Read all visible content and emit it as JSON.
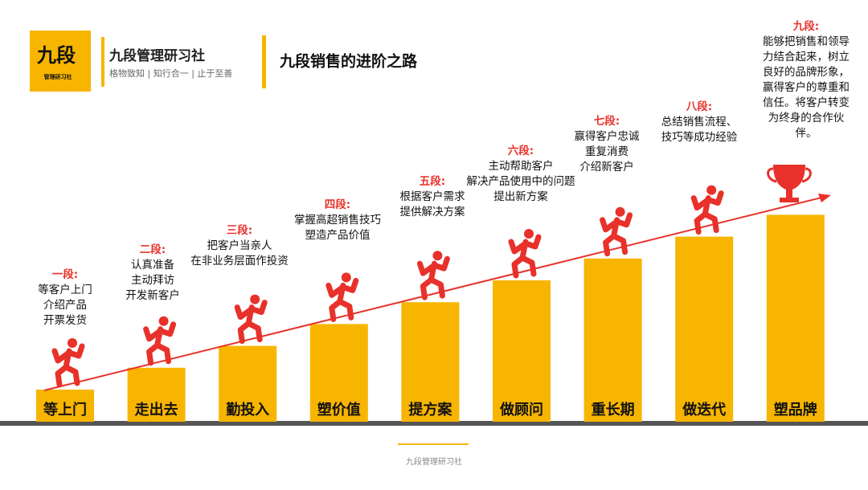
{
  "header": {
    "logo": "九段",
    "logo_sub": "管理研习社",
    "brand": "九段管理研习社",
    "motto": "格物致知 | 知行合一 | 止于至善",
    "title": "九段销售的进阶之路"
  },
  "steps": [
    {
      "label": "等上门",
      "title": "一段:",
      "lines": [
        "等客户上门",
        "介绍产品",
        "开票发货"
      ]
    },
    {
      "label": "走出去",
      "title": "二段:",
      "lines": [
        "认真准备",
        "主动拜访",
        "开发新客户"
      ]
    },
    {
      "label": "勤投入",
      "title": "三段:",
      "lines": [
        "把客户当亲人",
        "在非业务层面作投资"
      ]
    },
    {
      "label": "塑价值",
      "title": "四段:",
      "lines": [
        "掌握高超销售技巧",
        "塑造产品价值"
      ]
    },
    {
      "label": "提方案",
      "title": "五段:",
      "lines": [
        "根据客户需求",
        "提供解决方案"
      ]
    },
    {
      "label": "做顾问",
      "title": "六段:",
      "lines": [
        "主动帮助客户",
        "解决产品使用中的问题",
        "提出新方案"
      ]
    },
    {
      "label": "重长期",
      "title": "七段:",
      "lines": [
        "赢得客户忠诚",
        "重复消费",
        "介绍新客户"
      ]
    },
    {
      "label": "做迭代",
      "title": "八段:",
      "lines": [
        "总结销售流程、",
        "技巧等成功经验"
      ]
    },
    {
      "label": "塑品牌",
      "title": "九段:",
      "lines": [
        "能够把销售和领导",
        "力结合起来，树立",
        "良好的品牌形象，",
        "赢得客户的尊重和",
        "信任。将客户转变",
        "为终身的合作伙",
        "伴。"
      ]
    }
  ],
  "footer": "九段管理研习社"
}
